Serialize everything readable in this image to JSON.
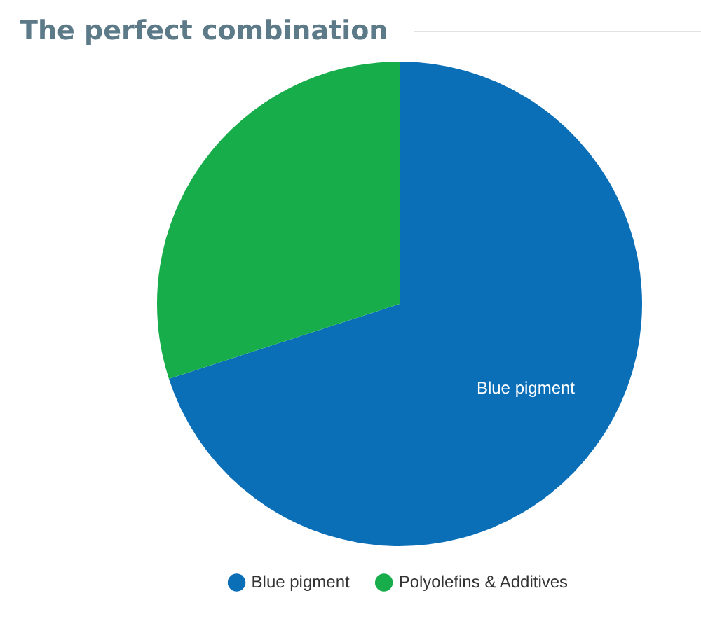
{
  "chart_data": {
    "type": "pie",
    "title": "The perfect combination",
    "categories": [
      "Blue pigment",
      "Polyolefins & Additives"
    ],
    "values": [
      70,
      30
    ],
    "colors": [
      "#0b6fb8",
      "#17ad4b"
    ],
    "annotations": [
      {
        "text": "Blue pigment",
        "x": "Blue pigment"
      }
    ],
    "legend": "bottom"
  }
}
